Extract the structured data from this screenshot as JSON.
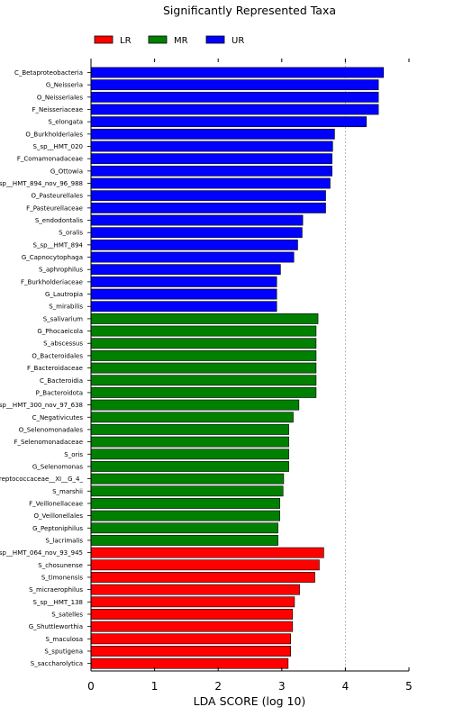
{
  "chart_data": {
    "type": "bar",
    "orientation": "horizontal",
    "title": "Significantly Represented Taxa",
    "xlabel": "LDA SCORE (log 10)",
    "ylabel": "",
    "xlim": [
      0,
      5
    ],
    "xticks": [
      "0",
      "1",
      "2",
      "3",
      "4",
      "5"
    ],
    "grid": "vertical dotted",
    "legend": {
      "placement": "top-left",
      "entries": [
        {
          "name": "LR",
          "color": "#ff0000"
        },
        {
          "name": "MR",
          "color": "#008000"
        },
        {
          "name": "UR",
          "color": "#0000ff"
        }
      ]
    },
    "bars": [
      {
        "label": "C_Betaproteobacteria",
        "value": 4.6,
        "group": "UR"
      },
      {
        "label": "G_Neisseria",
        "value": 4.52,
        "group": "UR"
      },
      {
        "label": "O_Neisseriales",
        "value": 4.52,
        "group": "UR"
      },
      {
        "label": "F_Neisseriaceae",
        "value": 4.52,
        "group": "UR"
      },
      {
        "label": "S_elongata",
        "value": 4.33,
        "group": "UR"
      },
      {
        "label": "O_Burkholderiales",
        "value": 3.83,
        "group": "UR"
      },
      {
        "label": "S_sp__HMT_020",
        "value": 3.8,
        "group": "UR"
      },
      {
        "label": "F_Comamonadaceae",
        "value": 3.79,
        "group": "UR"
      },
      {
        "label": "G_Ottowia",
        "value": 3.79,
        "group": "UR"
      },
      {
        "label": "S_sp__HMT_894_nov_96_988",
        "value": 3.76,
        "group": "UR"
      },
      {
        "label": "O_Pasteurellales",
        "value": 3.69,
        "group": "UR"
      },
      {
        "label": "F_Pasteurellaceae",
        "value": 3.69,
        "group": "UR"
      },
      {
        "label": "S_endodontalis",
        "value": 3.33,
        "group": "UR"
      },
      {
        "label": "S_oralis",
        "value": 3.32,
        "group": "UR"
      },
      {
        "label": "S_sp__HMT_894",
        "value": 3.25,
        "group": "UR"
      },
      {
        "label": "G_Capnocytophaga",
        "value": 3.19,
        "group": "UR"
      },
      {
        "label": "S_aphrophilus",
        "value": 2.98,
        "group": "UR"
      },
      {
        "label": "F_Burkholderiaceae",
        "value": 2.92,
        "group": "UR"
      },
      {
        "label": "G_Lautropia",
        "value": 2.92,
        "group": "UR"
      },
      {
        "label": "S_mirabilis",
        "value": 2.92,
        "group": "UR"
      },
      {
        "label": "S_salivarium",
        "value": 3.57,
        "group": "MR"
      },
      {
        "label": "G_Phocaeicola",
        "value": 3.54,
        "group": "MR"
      },
      {
        "label": "S_abscessus",
        "value": 3.54,
        "group": "MR"
      },
      {
        "label": "O_Bacteroidales",
        "value": 3.54,
        "group": "MR"
      },
      {
        "label": "F_Bacteroidaceae",
        "value": 3.54,
        "group": "MR"
      },
      {
        "label": "C_Bacteroidia",
        "value": 3.54,
        "group": "MR"
      },
      {
        "label": "P_Bacteroidota",
        "value": 3.54,
        "group": "MR"
      },
      {
        "label": "S_sp__HMT_300_nov_97_638",
        "value": 3.27,
        "group": "MR"
      },
      {
        "label": "C_Negativicutes",
        "value": 3.18,
        "group": "MR"
      },
      {
        "label": "O_Selenomonadales",
        "value": 3.11,
        "group": "MR"
      },
      {
        "label": "F_Selenomonadaceae",
        "value": 3.11,
        "group": "MR"
      },
      {
        "label": "S_oris",
        "value": 3.11,
        "group": "MR"
      },
      {
        "label": "G_Selenomonas",
        "value": 3.11,
        "group": "MR"
      },
      {
        "label": "F_Peptostreptococcaceae__XI__G_4_",
        "value": 3.03,
        "group": "MR"
      },
      {
        "label": "S_marshii",
        "value": 3.02,
        "group": "MR"
      },
      {
        "label": "F_Veillonellaceae",
        "value": 2.97,
        "group": "MR"
      },
      {
        "label": "O_Veillonellales",
        "value": 2.97,
        "group": "MR"
      },
      {
        "label": "G_Peptoniphilus",
        "value": 2.94,
        "group": "MR"
      },
      {
        "label": "S_lacrimalis",
        "value": 2.94,
        "group": "MR"
      },
      {
        "label": "S_sp__HMT_064_nov_93_945",
        "value": 3.66,
        "group": "LR"
      },
      {
        "label": "S_chosunense",
        "value": 3.59,
        "group": "LR"
      },
      {
        "label": "S_timonensis",
        "value": 3.52,
        "group": "LR"
      },
      {
        "label": "S_micraerophilus",
        "value": 3.28,
        "group": "LR"
      },
      {
        "label": "S_sp__HMT_138",
        "value": 3.2,
        "group": "LR"
      },
      {
        "label": "S_satelles",
        "value": 3.17,
        "group": "LR"
      },
      {
        "label": "G_Shuttleworthia",
        "value": 3.17,
        "group": "LR"
      },
      {
        "label": "S_maculosa",
        "value": 3.14,
        "group": "LR"
      },
      {
        "label": "S_sputigena",
        "value": 3.14,
        "group": "LR"
      },
      {
        "label": "S_saccharolytica",
        "value": 3.1,
        "group": "LR"
      }
    ]
  }
}
